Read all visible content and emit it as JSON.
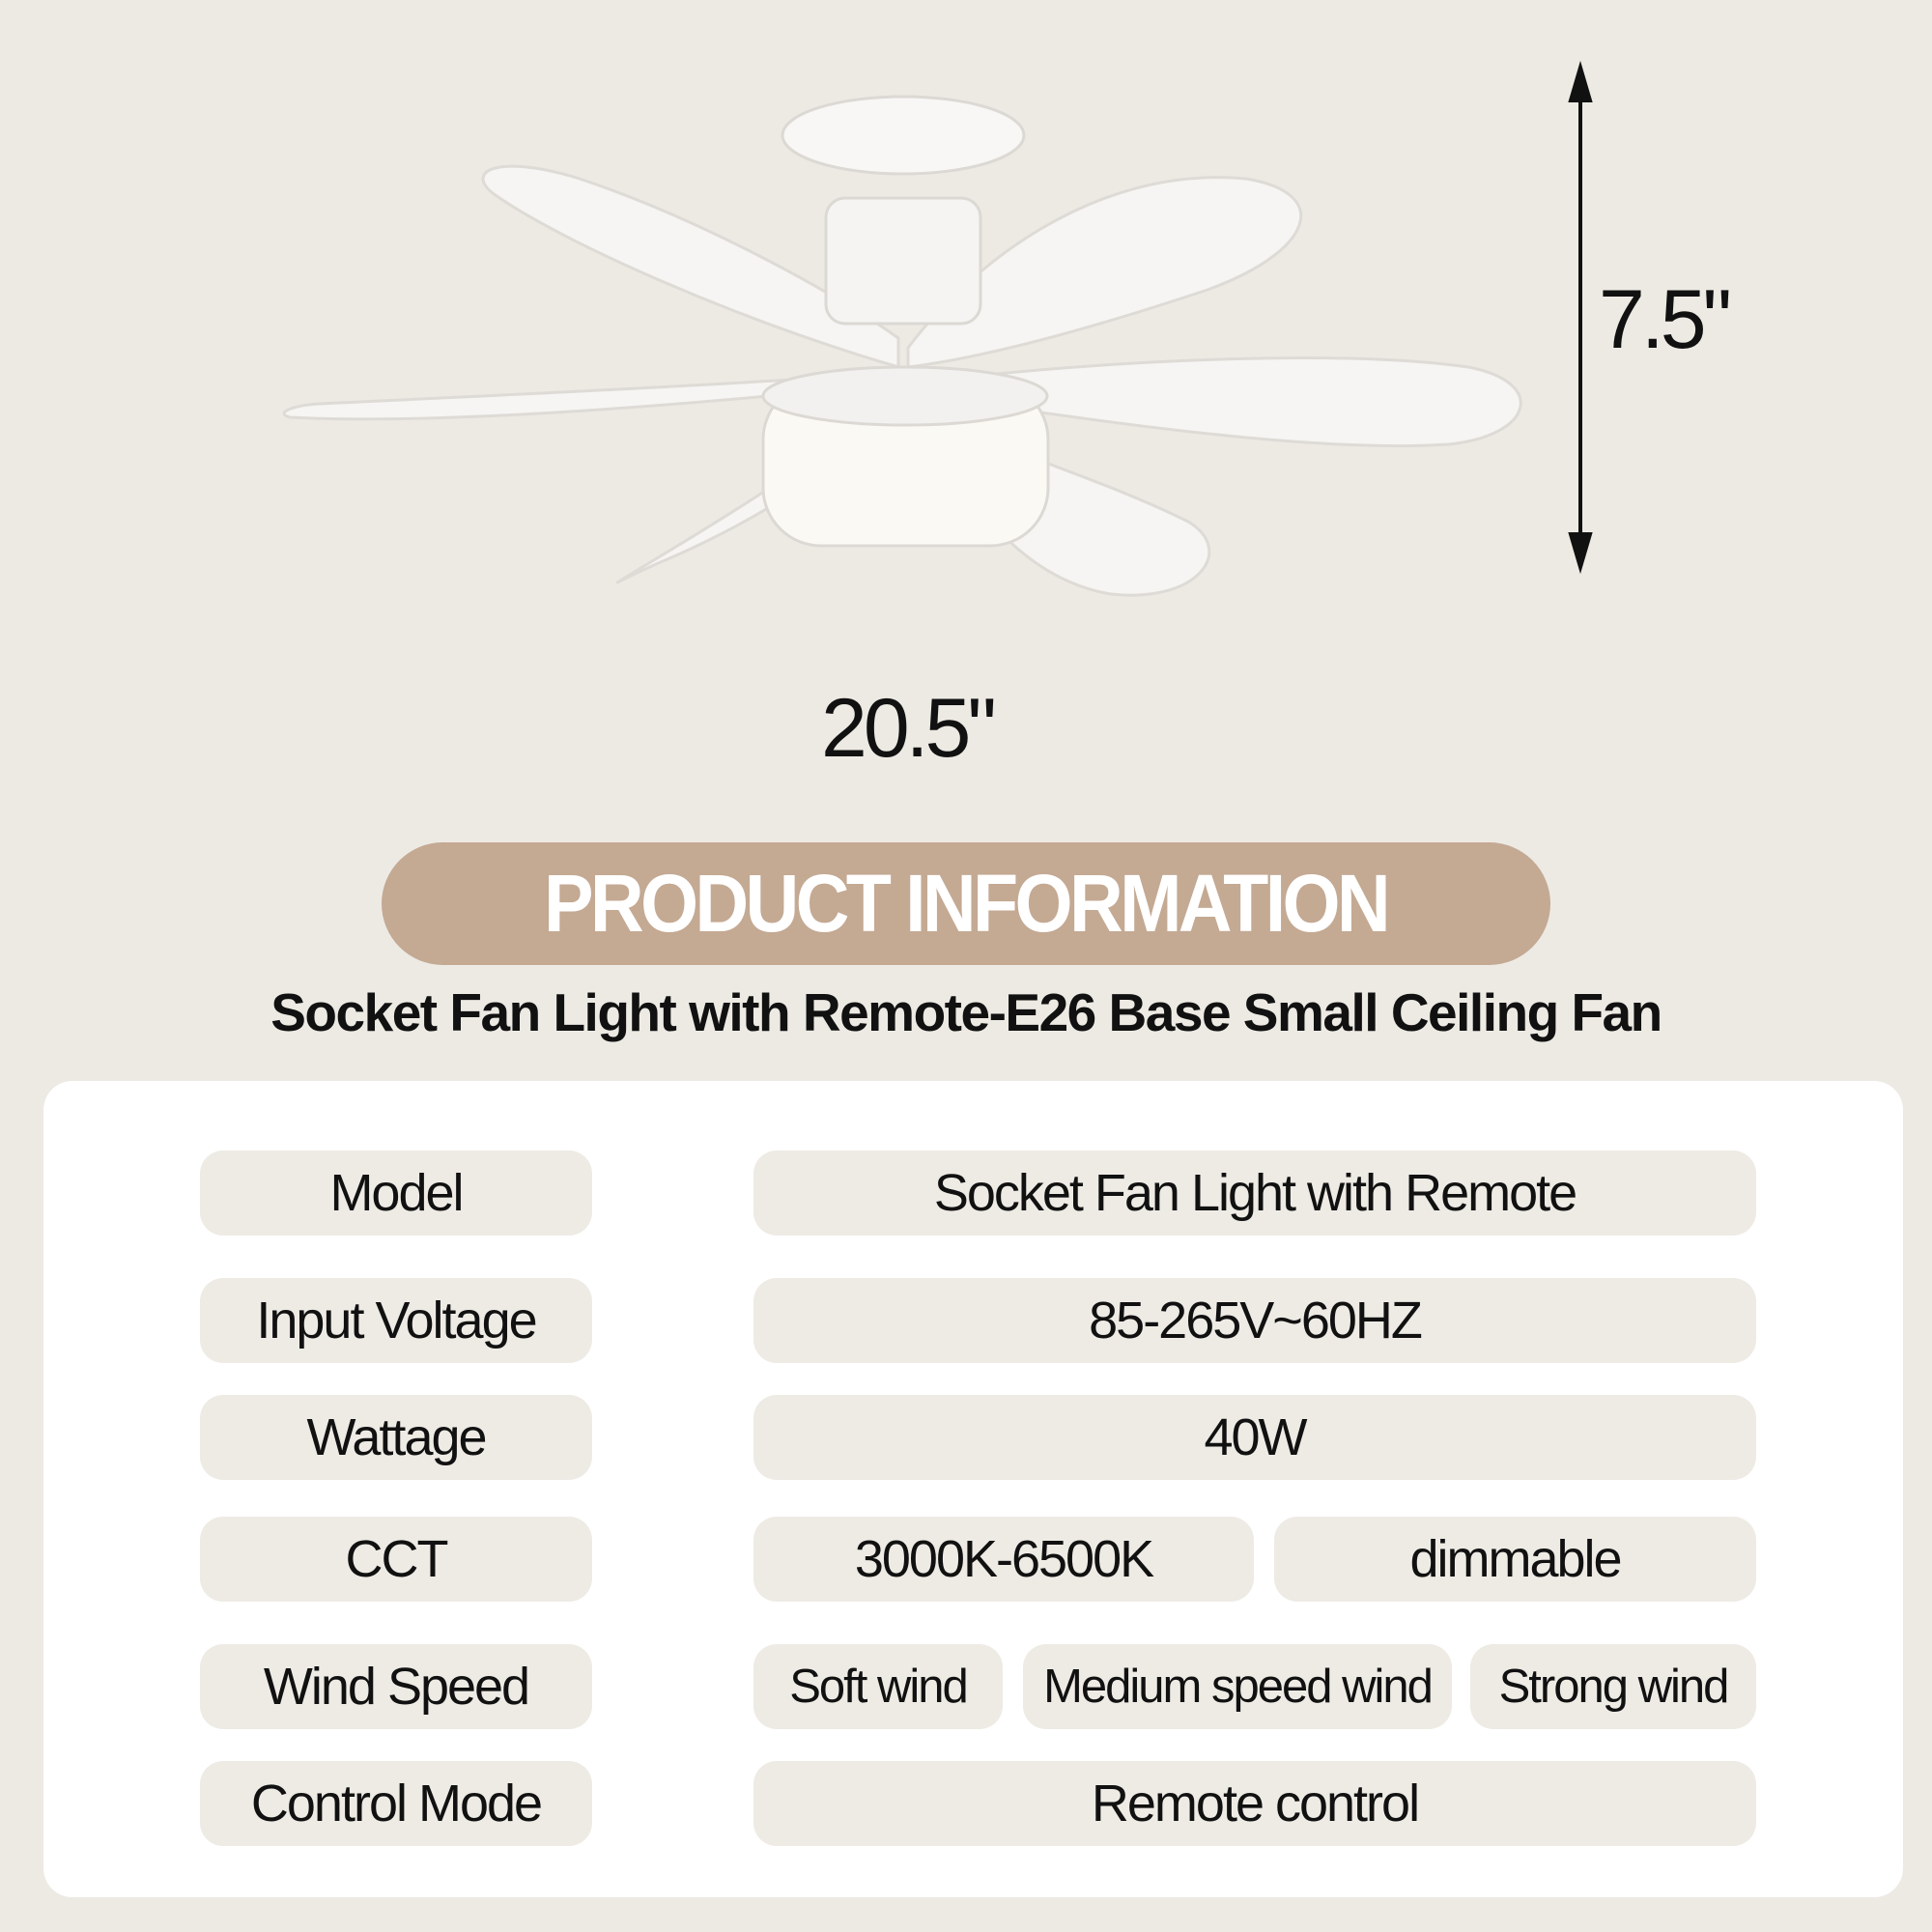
{
  "dimensions": {
    "width": "20.5\"",
    "height": "7.5\""
  },
  "banner": {
    "title": "PRODUCT INFORMATION"
  },
  "subtitle": "Socket Fan Light with Remote-E26 Base Small Ceiling Fan",
  "colors": {
    "background": "#edeae4",
    "banner": "#c4a993",
    "card": "#ffffff",
    "cell": "#eeebe5"
  },
  "specs": {
    "model": {
      "label": "Model",
      "value": "Socket Fan Light with Remote"
    },
    "voltage": {
      "label": "Input Voltage",
      "value": "85-265V~60HZ"
    },
    "wattage": {
      "label": "Wattage",
      "value": "40W"
    },
    "cct": {
      "label": "CCT",
      "values": [
        "3000K-6500K",
        "dimmable"
      ]
    },
    "wind": {
      "label": "Wind Speed",
      "values": [
        "Soft wind",
        "Medium speed wind",
        "Strong wind"
      ]
    },
    "control": {
      "label": "Control Mode",
      "value": "Remote control"
    }
  }
}
